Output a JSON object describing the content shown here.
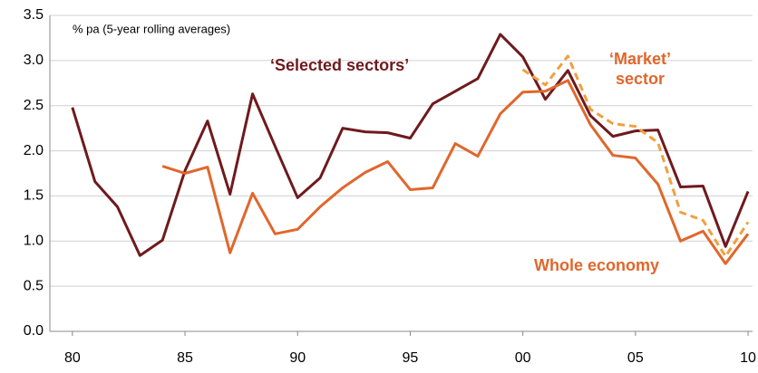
{
  "chart_data": {
    "type": "line",
    "subtitle": "% pa (5-year rolling averages)",
    "x": [
      1980,
      1981,
      1982,
      1983,
      1984,
      1985,
      1986,
      1987,
      1988,
      1989,
      1990,
      1991,
      1992,
      1993,
      1994,
      1995,
      1996,
      1997,
      1998,
      1999,
      2000,
      2001,
      2002,
      2003,
      2004,
      2005,
      2006,
      2007,
      2008,
      2009,
      2010
    ],
    "series": [
      {
        "name": "‘Selected sectors’",
        "color": "#6e1a1e",
        "dash": false,
        "values": [
          2.48,
          1.66,
          1.38,
          0.84,
          1.01,
          1.78,
          2.33,
          1.52,
          2.63,
          2.05,
          1.48,
          1.7,
          2.25,
          2.21,
          2.2,
          2.14,
          2.52,
          2.66,
          2.8,
          3.29,
          3.04,
          2.57,
          2.89,
          2.39,
          2.16,
          2.22,
          2.23,
          1.6,
          1.61,
          0.94,
          1.55
        ]
      },
      {
        "name": "‘Market’ sector",
        "color": "#f0a040",
        "dash": true,
        "values": [
          null,
          null,
          null,
          null,
          null,
          null,
          null,
          null,
          null,
          null,
          null,
          null,
          null,
          null,
          null,
          null,
          null,
          null,
          null,
          null,
          2.9,
          2.73,
          3.05,
          2.46,
          2.3,
          2.27,
          2.09,
          1.32,
          1.23,
          0.83,
          1.21
        ]
      },
      {
        "name": "Whole economy",
        "color": "#e0672c",
        "dash": false,
        "values": [
          null,
          null,
          null,
          null,
          1.83,
          1.75,
          1.82,
          0.87,
          1.53,
          1.08,
          1.13,
          1.38,
          1.59,
          1.76,
          1.88,
          1.57,
          1.59,
          2.08,
          1.94,
          2.41,
          2.65,
          2.66,
          2.78,
          2.29,
          1.95,
          1.92,
          1.63,
          1.0,
          1.11,
          0.75,
          1.08
        ]
      }
    ],
    "xlim": [
      1979,
      2010.2
    ],
    "xticks": [
      {
        "value": 1980,
        "label": "80"
      },
      {
        "value": 1985,
        "label": "85"
      },
      {
        "value": 1990,
        "label": "90"
      },
      {
        "value": 1995,
        "label": "95"
      },
      {
        "value": 2000,
        "label": "00"
      },
      {
        "value": 2005,
        "label": "05"
      },
      {
        "value": 2010,
        "label": "10"
      }
    ],
    "ylim": [
      0,
      3.5
    ],
    "yticks": [
      {
        "value": 0,
        "label": "0.0"
      },
      0.5,
      {
        "value": 1,
        "label": "1.0"
      },
      1.5,
      {
        "value": 2,
        "label": "2.0"
      },
      2.5,
      {
        "value": 3,
        "label": "3.0"
      },
      3.5
    ],
    "grid": true
  }
}
